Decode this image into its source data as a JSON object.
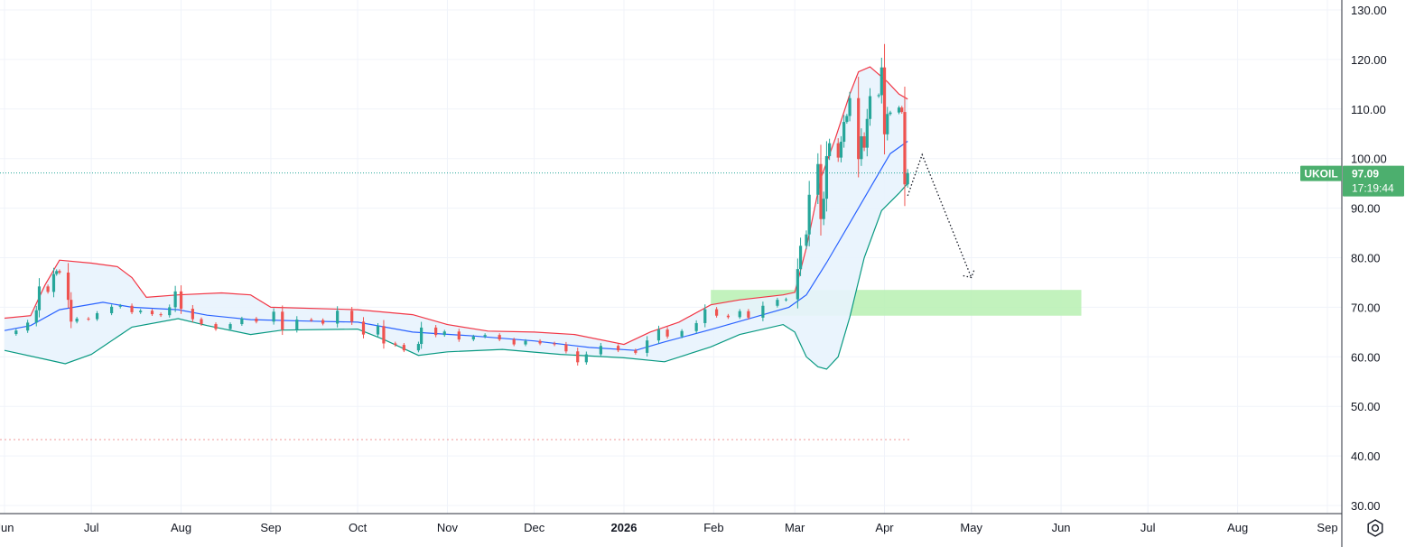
{
  "chart_data": {
    "type": "candlestick",
    "symbol": "UKOIL",
    "last_price": "97.09",
    "countdown": "17:19:44",
    "ylim": [
      28,
      132
    ],
    "y_ticks": [
      "130.00",
      "120.00",
      "110.00",
      "100.00",
      "90.00",
      "80.00",
      "70.00",
      "60.00",
      "50.00",
      "40.00",
      "30.00"
    ],
    "x_ticks": [
      {
        "label": "Jun",
        "date": "2025-06-01"
      },
      {
        "label": "Jul",
        "date": "2025-07-01"
      },
      {
        "label": "Aug",
        "date": "2025-08-01"
      },
      {
        "label": "Sep",
        "date": "2025-09-01"
      },
      {
        "label": "Oct",
        "date": "2025-10-01"
      },
      {
        "label": "Nov",
        "date": "2025-11-01"
      },
      {
        "label": "Dec",
        "date": "2025-12-01"
      },
      {
        "label": "2026",
        "date": "2026-01-01",
        "bold": true
      },
      {
        "label": "Feb",
        "date": "2026-02-01"
      },
      {
        "label": "Mar",
        "date": "2026-03-01"
      },
      {
        "label": "Apr",
        "date": "2026-04-01"
      },
      {
        "label": "May",
        "date": "2026-05-01"
      },
      {
        "label": "Jun",
        "date": "2026-06-01"
      },
      {
        "label": "Jul",
        "date": "2026-07-01"
      },
      {
        "label": "Aug",
        "date": "2026-08-01"
      },
      {
        "label": "Sep",
        "date": "2026-09-01"
      }
    ],
    "close_series": [
      {
        "date": "2025-06-02",
        "close": 64.6
      },
      {
        "date": "2025-06-05",
        "close": 65.3
      },
      {
        "date": "2025-06-09",
        "close": 66.9
      },
      {
        "date": "2025-06-12",
        "close": 69.4
      },
      {
        "date": "2025-06-13",
        "close": 74.2
      },
      {
        "date": "2025-06-16",
        "close": 73.1
      },
      {
        "date": "2025-06-18",
        "close": 76.7
      },
      {
        "date": "2025-06-19",
        "close": 77.3
      },
      {
        "date": "2025-06-20",
        "close": 77.0
      },
      {
        "date": "2025-06-23",
        "close": 71.5
      },
      {
        "date": "2025-06-24",
        "close": 67.1
      },
      {
        "date": "2025-06-26",
        "close": 67.7
      },
      {
        "date": "2025-06-30",
        "close": 67.6
      },
      {
        "date": "2025-07-03",
        "close": 68.8
      },
      {
        "date": "2025-07-08",
        "close": 70.1
      },
      {
        "date": "2025-07-11",
        "close": 70.3
      },
      {
        "date": "2025-07-15",
        "close": 69.0
      },
      {
        "date": "2025-07-18",
        "close": 69.3
      },
      {
        "date": "2025-07-22",
        "close": 68.6
      },
      {
        "date": "2025-07-25",
        "close": 68.4
      },
      {
        "date": "2025-07-28",
        "close": 70.0
      },
      {
        "date": "2025-07-30",
        "close": 73.2
      },
      {
        "date": "2025-08-01",
        "close": 69.7
      },
      {
        "date": "2025-08-05",
        "close": 67.6
      },
      {
        "date": "2025-08-08",
        "close": 66.6
      },
      {
        "date": "2025-08-13",
        "close": 65.6
      },
      {
        "date": "2025-08-18",
        "close": 66.6
      },
      {
        "date": "2025-08-22",
        "close": 67.7
      },
      {
        "date": "2025-08-27",
        "close": 67.1
      },
      {
        "date": "2025-09-02",
        "close": 69.1
      },
      {
        "date": "2025-09-05",
        "close": 65.5
      },
      {
        "date": "2025-09-10",
        "close": 67.5
      },
      {
        "date": "2025-09-15",
        "close": 67.4
      },
      {
        "date": "2025-09-19",
        "close": 66.7
      },
      {
        "date": "2025-09-24",
        "close": 69.3
      },
      {
        "date": "2025-09-29",
        "close": 67.1
      },
      {
        "date": "2025-10-03",
        "close": 64.5
      },
      {
        "date": "2025-10-08",
        "close": 66.2
      },
      {
        "date": "2025-10-10",
        "close": 62.7
      },
      {
        "date": "2025-10-14",
        "close": 62.4
      },
      {
        "date": "2025-10-17",
        "close": 61.3
      },
      {
        "date": "2025-10-22",
        "close": 62.6
      },
      {
        "date": "2025-10-23",
        "close": 65.9
      },
      {
        "date": "2025-10-28",
        "close": 64.4
      },
      {
        "date": "2025-10-31",
        "close": 65.1
      },
      {
        "date": "2025-11-05",
        "close": 63.5
      },
      {
        "date": "2025-11-10",
        "close": 64.1
      },
      {
        "date": "2025-11-14",
        "close": 64.4
      },
      {
        "date": "2025-11-19",
        "close": 63.5
      },
      {
        "date": "2025-11-24",
        "close": 62.5
      },
      {
        "date": "2025-11-28",
        "close": 63.2
      },
      {
        "date": "2025-12-03",
        "close": 62.7
      },
      {
        "date": "2025-12-08",
        "close": 62.5
      },
      {
        "date": "2025-12-12",
        "close": 61.1
      },
      {
        "date": "2025-12-16",
        "close": 58.9
      },
      {
        "date": "2025-12-19",
        "close": 60.5
      },
      {
        "date": "2025-12-24",
        "close": 62.2
      },
      {
        "date": "2025-12-30",
        "close": 61.3
      },
      {
        "date": "2026-01-05",
        "close": 60.8
      },
      {
        "date": "2026-01-09",
        "close": 63.3
      },
      {
        "date": "2026-01-13",
        "close": 65.5
      },
      {
        "date": "2026-01-16",
        "close": 64.1
      },
      {
        "date": "2026-01-21",
        "close": 65.2
      },
      {
        "date": "2026-01-26",
        "close": 66.8
      },
      {
        "date": "2026-01-29",
        "close": 69.6
      },
      {
        "date": "2026-02-02",
        "close": 68.3
      },
      {
        "date": "2026-02-06",
        "close": 68.0
      },
      {
        "date": "2026-02-10",
        "close": 69.2
      },
      {
        "date": "2026-02-13",
        "close": 67.9
      },
      {
        "date": "2026-02-18",
        "close": 70.3
      },
      {
        "date": "2026-02-23",
        "close": 71.5
      },
      {
        "date": "2026-02-26",
        "close": 71.6
      },
      {
        "date": "2026-03-02",
        "close": 77.7
      },
      {
        "date": "2026-03-03",
        "close": 82.4
      },
      {
        "date": "2026-03-05",
        "close": 84.7
      },
      {
        "date": "2026-03-06",
        "close": 92.7
      },
      {
        "date": "2026-03-09",
        "close": 98.9
      },
      {
        "date": "2026-03-10",
        "close": 87.8
      },
      {
        "date": "2026-03-11",
        "close": 91.9
      },
      {
        "date": "2026-03-12",
        "close": 100.5
      },
      {
        "date": "2026-03-13",
        "close": 103.1
      },
      {
        "date": "2026-03-16",
        "close": 100.2
      },
      {
        "date": "2026-03-17",
        "close": 103.4
      },
      {
        "date": "2026-03-18",
        "close": 107.4
      },
      {
        "date": "2026-03-19",
        "close": 108.6
      },
      {
        "date": "2026-03-20",
        "close": 112.2
      },
      {
        "date": "2026-03-23",
        "close": 99.9
      },
      {
        "date": "2026-03-24",
        "close": 104.5
      },
      {
        "date": "2026-03-25",
        "close": 102.2
      },
      {
        "date": "2026-03-26",
        "close": 108.0
      },
      {
        "date": "2026-03-27",
        "close": 112.6
      },
      {
        "date": "2026-03-30",
        "close": 112.8
      },
      {
        "date": "2026-03-31",
        "close": 118.4
      },
      {
        "date": "2026-04-01",
        "close": 104.9
      },
      {
        "date": "2026-04-02",
        "close": 109.0
      },
      {
        "date": "2026-04-03",
        "close": 109.3
      },
      {
        "date": "2026-04-06",
        "close": 110.3
      },
      {
        "date": "2026-04-07",
        "close": 109.4
      },
      {
        "date": "2026-04-08",
        "close": 94.8
      },
      {
        "date": "2026-04-09",
        "close": 97.09
      }
    ],
    "bollinger": {
      "upper": [
        {
          "date": "2025-06-01",
          "y": 67.8
        },
        {
          "date": "2025-06-10",
          "y": 68.3
        },
        {
          "date": "2025-06-15",
          "y": 74.5
        },
        {
          "date": "2025-06-20",
          "y": 79.5
        },
        {
          "date": "2025-07-01",
          "y": 78.9
        },
        {
          "date": "2025-07-10",
          "y": 78.2
        },
        {
          "date": "2025-07-15",
          "y": 76.0
        },
        {
          "date": "2025-07-20",
          "y": 72.0
        },
        {
          "date": "2025-07-31",
          "y": 72.5
        },
        {
          "date": "2025-08-15",
          "y": 72.9
        },
        {
          "date": "2025-08-25",
          "y": 72.5
        },
        {
          "date": "2025-09-01",
          "y": 70.0
        },
        {
          "date": "2025-10-01",
          "y": 69.5
        },
        {
          "date": "2025-10-20",
          "y": 68.5
        },
        {
          "date": "2025-11-01",
          "y": 66.5
        },
        {
          "date": "2025-11-15",
          "y": 65.2
        },
        {
          "date": "2025-12-01",
          "y": 65.0
        },
        {
          "date": "2025-12-15",
          "y": 64.5
        },
        {
          "date": "2026-01-01",
          "y": 62.5
        },
        {
          "date": "2026-01-10",
          "y": 65.0
        },
        {
          "date": "2026-01-20",
          "y": 67.0
        },
        {
          "date": "2026-01-31",
          "y": 70.5
        },
        {
          "date": "2026-02-10",
          "y": 71.5
        },
        {
          "date": "2026-02-25",
          "y": 72.5
        },
        {
          "date": "2026-03-01",
          "y": 73.0
        },
        {
          "date": "2026-03-05",
          "y": 82.0
        },
        {
          "date": "2026-03-10",
          "y": 96.0
        },
        {
          "date": "2026-03-15",
          "y": 104.0
        },
        {
          "date": "2026-03-20",
          "y": 113.0
        },
        {
          "date": "2026-03-23",
          "y": 117.5
        },
        {
          "date": "2026-03-27",
          "y": 118.5
        },
        {
          "date": "2026-04-02",
          "y": 115.5
        },
        {
          "date": "2026-04-06",
          "y": 113.0
        },
        {
          "date": "2026-04-09",
          "y": 112.0
        }
      ],
      "middle": [
        {
          "date": "2025-06-01",
          "y": 65.3
        },
        {
          "date": "2025-06-10",
          "y": 66.3
        },
        {
          "date": "2025-06-20",
          "y": 69.5
        },
        {
          "date": "2025-07-05",
          "y": 71.0
        },
        {
          "date": "2025-07-15",
          "y": 70.0
        },
        {
          "date": "2025-07-31",
          "y": 69.5
        },
        {
          "date": "2025-08-10",
          "y": 68.4
        },
        {
          "date": "2025-08-25",
          "y": 67.5
        },
        {
          "date": "2025-09-15",
          "y": 67.2
        },
        {
          "date": "2025-10-01",
          "y": 67.0
        },
        {
          "date": "2025-10-20",
          "y": 65.0
        },
        {
          "date": "2025-11-10",
          "y": 64.2
        },
        {
          "date": "2025-12-01",
          "y": 63.2
        },
        {
          "date": "2025-12-20",
          "y": 61.9
        },
        {
          "date": "2026-01-05",
          "y": 61.3
        },
        {
          "date": "2026-01-15",
          "y": 63.0
        },
        {
          "date": "2026-01-31",
          "y": 65.5
        },
        {
          "date": "2026-02-15",
          "y": 68.0
        },
        {
          "date": "2026-02-27",
          "y": 70.0
        },
        {
          "date": "2026-03-05",
          "y": 72.5
        },
        {
          "date": "2026-03-12",
          "y": 79.0
        },
        {
          "date": "2026-03-20",
          "y": 87.0
        },
        {
          "date": "2026-03-27",
          "y": 94.0
        },
        {
          "date": "2026-04-03",
          "y": 101.0
        },
        {
          "date": "2026-04-09",
          "y": 103.5
        }
      ],
      "lower": [
        {
          "date": "2025-06-01",
          "y": 61.3
        },
        {
          "date": "2025-06-15",
          "y": 59.5
        },
        {
          "date": "2025-06-22",
          "y": 58.6
        },
        {
          "date": "2025-07-01",
          "y": 60.5
        },
        {
          "date": "2025-07-15",
          "y": 66.0
        },
        {
          "date": "2025-07-31",
          "y": 67.7
        },
        {
          "date": "2025-08-10",
          "y": 66.3
        },
        {
          "date": "2025-08-25",
          "y": 64.5
        },
        {
          "date": "2025-09-05",
          "y": 65.4
        },
        {
          "date": "2025-10-01",
          "y": 65.6
        },
        {
          "date": "2025-10-10",
          "y": 63.5
        },
        {
          "date": "2025-10-22",
          "y": 60.3
        },
        {
          "date": "2025-11-01",
          "y": 61.0
        },
        {
          "date": "2025-11-20",
          "y": 61.5
        },
        {
          "date": "2025-12-10",
          "y": 60.5
        },
        {
          "date": "2026-01-01",
          "y": 59.8
        },
        {
          "date": "2026-01-15",
          "y": 59.0
        },
        {
          "date": "2026-01-31",
          "y": 62.0
        },
        {
          "date": "2026-02-10",
          "y": 64.5
        },
        {
          "date": "2026-02-25",
          "y": 66.5
        },
        {
          "date": "2026-03-01",
          "y": 65.0
        },
        {
          "date": "2026-03-05",
          "y": 60.0
        },
        {
          "date": "2026-03-09",
          "y": 58.0
        },
        {
          "date": "2026-03-12",
          "y": 57.5
        },
        {
          "date": "2026-03-16",
          "y": 60.0
        },
        {
          "date": "2026-03-20",
          "y": 68.0
        },
        {
          "date": "2026-03-25",
          "y": 80.0
        },
        {
          "date": "2026-03-31",
          "y": 89.5
        },
        {
          "date": "2026-04-06",
          "y": 93.0
        },
        {
          "date": "2026-04-09",
          "y": 95.0
        }
      ]
    },
    "target_zone": {
      "date_from": "2026-01-31",
      "date_to": "2026-06-08",
      "y_from": 68.3,
      "y_to": 73.5,
      "color": "#b7f0b2"
    },
    "projection_path": [
      {
        "date": "2026-04-09",
        "y": 92.5
      },
      {
        "date": "2026-04-14",
        "y": 100.8
      },
      {
        "date": "2026-05-01",
        "y": 76.0
      }
    ],
    "reference_line": {
      "y": 43.3,
      "color": "#ef9a9a"
    },
    "colors": {
      "up": "#26a69a",
      "down": "#ef5350",
      "upper_band": "#f23645",
      "middle_band": "#2962ff",
      "lower_band": "#089981",
      "band_fill": "#e8f3fd",
      "badge": "#4caf6e",
      "last_line": "#26a69a",
      "grid": "#f0f3fa",
      "axis_text": "#131722"
    }
  },
  "settings_icon": "gear-icon"
}
